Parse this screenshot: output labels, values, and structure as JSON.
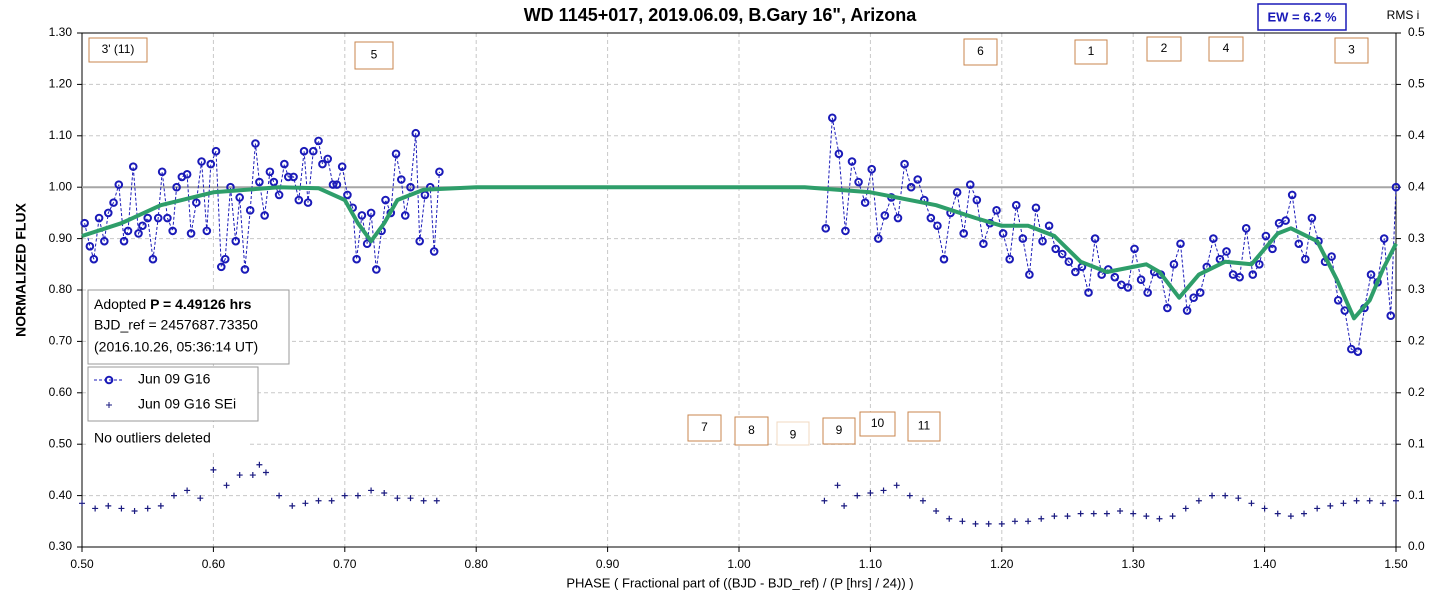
{
  "chart_data": {
    "type": "scatter",
    "title": "WD 1145+017, 2019.06.09, B.Gary 16\", Arizona",
    "x_label": "PHASE ( Fractional part of ((BJD - BJD_ref) / (P [hrs] / 24)) )",
    "y_label": "NORMALIZED FLUX",
    "y2_label": "RMS i",
    "ew_label": "EW =  6.2 %",
    "period_note": {
      "prefix": "Adopted",
      "period": "P = 4.49126 hrs",
      "ref": "BJD_ref = 2457687.73350",
      "date": "(2016.10.26, 05:36:14 UT)"
    },
    "outlier_note": "No outliers deleted",
    "annotations": [
      "3' (11)",
      "5",
      "6",
      "1",
      "2",
      "4",
      "3",
      "7",
      "8",
      "9",
      "9",
      "10",
      "11"
    ],
    "xlim": [
      0.5,
      1.5
    ],
    "xticks": [
      {
        "value": 0.5,
        "label": "0.50"
      },
      {
        "value": 0.6,
        "label": "0.60"
      },
      {
        "value": 0.7,
        "label": "0.70"
      },
      {
        "value": 0.8,
        "label": "0.80"
      },
      {
        "value": 0.9,
        "label": "0.90"
      },
      {
        "value": 1.0,
        "label": "1.00"
      },
      {
        "value": 1.1,
        "label": "1.10"
      },
      {
        "value": 1.2,
        "label": "1.20"
      },
      {
        "value": 1.3,
        "label": "1.30"
      },
      {
        "value": 1.4,
        "label": "1.40"
      },
      {
        "value": 1.5,
        "label": "1.50"
      }
    ],
    "ylim": [
      0.3,
      1.3
    ],
    "yticks": [
      {
        "value": 0.3,
        "label": "0.30"
      },
      {
        "value": 0.4,
        "label": "0.40"
      },
      {
        "value": 0.5,
        "label": "0.50"
      },
      {
        "value": 0.6,
        "label": "0.60"
      },
      {
        "value": 0.7,
        "label": "0.70"
      },
      {
        "value": 0.8,
        "label": "0.80"
      },
      {
        "value": 0.9,
        "label": "0.90"
      },
      {
        "value": 1.0,
        "label": "1.00"
      },
      {
        "value": 1.1,
        "label": "1.10"
      },
      {
        "value": 1.2,
        "label": "1.20"
      },
      {
        "value": 1.3,
        "label": "1.30"
      }
    ],
    "y2lim": [
      0,
      0.5
    ],
    "y2ticks": [
      {
        "value": 0,
        "label": "0.0"
      },
      {
        "value": 0.05,
        "label": "0.1"
      },
      {
        "value": 0.1,
        "label": "0.1"
      },
      {
        "value": 0.15,
        "label": "0.2"
      },
      {
        "value": 0.2,
        "label": "0.2"
      },
      {
        "value": 0.25,
        "label": "0.3"
      },
      {
        "value": 0.3,
        "label": "0.3"
      },
      {
        "value": 0.35,
        "label": "0.4"
      },
      {
        "value": 0.4,
        "label": "0.4"
      },
      {
        "value": 0.45,
        "label": "0.5"
      },
      {
        "value": 0.5,
        "label": "0.5"
      }
    ],
    "grid": true,
    "baseline": {
      "value": 1.0,
      "color": "#a6a6a6"
    },
    "series": [
      {
        "name": "Jun 09 G16",
        "color": "#1a1ab8",
        "marker": "circle",
        "line": "dashed",
        "x": [
          0.502,
          0.506,
          0.509,
          0.513,
          0.517,
          0.52,
          0.524,
          0.528,
          0.532,
          0.535,
          0.539,
          0.543,
          0.546,
          0.55,
          0.554,
          0.558,
          0.561,
          0.565,
          0.569,
          0.572,
          0.576,
          0.58,
          0.583,
          0.587,
          0.591,
          0.595,
          0.598,
          0.602,
          0.606,
          0.609,
          0.613,
          0.617,
          0.62,
          0.624,
          0.628,
          0.632,
          0.635,
          0.639,
          0.643,
          0.646,
          0.65,
          0.654,
          0.657,
          0.661,
          0.665,
          0.669,
          0.672,
          0.676,
          0.68,
          0.683,
          0.687,
          0.691,
          0.694,
          0.698,
          0.702,
          0.706,
          0.709,
          0.713,
          0.717,
          0.72,
          0.724,
          0.728,
          0.731,
          0.735,
          0.739,
          0.743,
          0.746,
          0.75,
          0.754,
          0.757,
          0.761,
          0.765,
          0.768,
          0.772,
          null,
          1.066,
          1.071,
          1.076,
          1.081,
          1.086,
          1.091,
          1.096,
          1.101,
          1.106,
          1.111,
          1.116,
          1.121,
          1.126,
          1.131,
          1.136,
          1.141,
          1.146,
          1.151,
          1.156,
          1.161,
          1.166,
          1.171,
          1.176,
          1.181,
          1.186,
          1.191,
          1.196,
          1.201,
          1.206,
          1.211,
          1.216,
          1.221,
          1.226,
          1.231,
          1.236,
          1.241,
          1.246,
          1.251,
          1.256,
          1.261,
          1.266,
          1.271,
          1.276,
          1.281,
          1.286,
          1.291,
          1.296,
          1.301,
          1.306,
          1.311,
          1.316,
          1.321,
          1.326,
          1.331,
          1.336,
          1.341,
          1.346,
          1.351,
          1.356,
          1.361,
          1.366,
          1.371,
          1.376,
          1.381,
          1.386,
          1.391,
          1.396,
          1.401,
          1.406,
          1.411,
          1.416,
          1.421,
          1.426,
          1.431,
          1.436,
          1.441,
          1.446,
          1.451,
          1.456,
          1.461,
          1.466,
          1.471,
          1.476,
          1.481,
          1.486,
          1.491,
          1.496,
          1.5
        ],
        "values": [
          0.93,
          0.885,
          0.86,
          0.94,
          0.895,
          0.95,
          0.97,
          1.005,
          0.895,
          0.915,
          1.04,
          0.91,
          0.925,
          0.94,
          0.86,
          0.94,
          1.03,
          0.94,
          0.915,
          1.0,
          1.02,
          1.025,
          0.91,
          0.97,
          1.05,
          0.915,
          1.045,
          1.07,
          0.845,
          0.86,
          1.0,
          0.895,
          0.98,
          0.84,
          0.955,
          1.085,
          1.01,
          0.945,
          1.03,
          1.01,
          0.985,
          1.045,
          1.02,
          1.02,
          0.975,
          1.07,
          0.97,
          1.07,
          1.09,
          1.045,
          1.055,
          1.005,
          1.005,
          1.04,
          0.985,
          0.96,
          0.86,
          0.945,
          0.89,
          0.95,
          0.84,
          0.915,
          0.975,
          0.95,
          1.065,
          1.015,
          0.945,
          1.0,
          1.105,
          0.895,
          0.985,
          1.0,
          0.875,
          1.03,
          null,
          0.92,
          1.135,
          1.065,
          0.915,
          1.05,
          1.01,
          0.97,
          1.035,
          0.9,
          0.945,
          0.98,
          0.94,
          1.045,
          1.0,
          1.015,
          0.975,
          0.94,
          0.925,
          0.86,
          0.95,
          0.99,
          0.91,
          1.005,
          0.975,
          0.89,
          0.93,
          0.955,
          0.91,
          0.86,
          0.965,
          0.9,
          0.83,
          0.96,
          0.895,
          0.925,
          0.88,
          0.87,
          0.855,
          0.835,
          0.845,
          0.795,
          0.9,
          0.83,
          0.84,
          0.825,
          0.81,
          0.805,
          0.88,
          0.82,
          0.795,
          0.835,
          0.83,
          0.765,
          0.85,
          0.89,
          0.76,
          0.785,
          0.795,
          0.845,
          0.9,
          0.86,
          0.875,
          0.83,
          0.825,
          0.92,
          0.83,
          0.85,
          0.905,
          0.88,
          0.93,
          0.935,
          0.985,
          0.89,
          0.86,
          0.94,
          0.895,
          0.855,
          0.865,
          0.78,
          0.76,
          0.685,
          0.68,
          0.765,
          0.83,
          0.815,
          0.9,
          0.75,
          1.0
        ]
      },
      {
        "name": "Jun 09 G16 SEi",
        "color": "#1a1a80",
        "marker": "plus",
        "line": "none",
        "axis": "y2",
        "x": [
          0.5,
          0.51,
          0.52,
          0.53,
          0.54,
          0.55,
          0.56,
          0.57,
          0.58,
          0.59,
          0.6,
          0.61,
          0.62,
          0.63,
          0.635,
          0.64,
          0.65,
          0.66,
          0.67,
          0.68,
          0.69,
          0.7,
          0.71,
          0.72,
          0.73,
          0.74,
          0.75,
          0.76,
          0.77,
          null,
          1.065,
          1.075,
          1.08,
          1.09,
          1.1,
          1.11,
          1.12,
          1.13,
          1.14,
          1.15,
          1.16,
          1.17,
          1.18,
          1.19,
          1.2,
          1.21,
          1.22,
          1.23,
          1.24,
          1.25,
          1.26,
          1.27,
          1.28,
          1.29,
          1.3,
          1.31,
          1.32,
          1.33,
          1.34,
          1.35,
          1.36,
          1.37,
          1.38,
          1.39,
          1.4,
          1.41,
          1.42,
          1.43,
          1.44,
          1.45,
          1.46,
          1.47,
          1.48,
          1.49,
          1.5
        ],
        "values": [
          0.0425,
          0.0375,
          0.04,
          0.0375,
          0.035,
          0.0375,
          0.04,
          0.05,
          0.055,
          0.0475,
          0.075,
          0.06,
          0.07,
          0.07,
          0.08,
          0.0725,
          0.05,
          0.04,
          0.0425,
          0.045,
          0.045,
          0.05,
          0.05,
          0.055,
          0.0525,
          0.0475,
          0.0475,
          0.045,
          0.045,
          null,
          0.045,
          0.06,
          0.04,
          0.05,
          0.0525,
          0.055,
          0.06,
          0.05,
          0.045,
          0.035,
          0.0275,
          0.025,
          0.0225,
          0.0225,
          0.0225,
          0.025,
          0.025,
          0.0275,
          0.03,
          0.03,
          0.0325,
          0.0325,
          0.0325,
          0.035,
          0.0325,
          0.03,
          0.0275,
          0.03,
          0.0375,
          0.045,
          0.05,
          0.05,
          0.0475,
          0.0425,
          0.0375,
          0.0325,
          0.03,
          0.0325,
          0.0375,
          0.04,
          0.0425,
          0.045,
          0.045,
          0.0425,
          0.045
        ]
      }
    ],
    "model_curve": {
      "color": "#2e9e6a",
      "x": [
        0.5,
        0.53,
        0.56,
        0.6,
        0.65,
        0.68,
        0.7,
        0.71,
        0.72,
        0.73,
        0.74,
        0.76,
        0.8,
        1.05,
        1.1,
        1.15,
        1.18,
        1.2,
        1.22,
        1.24,
        1.26,
        1.28,
        1.3,
        1.31,
        1.32,
        1.335,
        1.35,
        1.37,
        1.39,
        1.41,
        1.42,
        1.44,
        1.455,
        1.468,
        1.48,
        1.49,
        1.5
      ],
      "values": [
        0.905,
        0.93,
        0.965,
        0.99,
        1.0,
        0.998,
        0.975,
        0.93,
        0.895,
        0.93,
        0.975,
        0.995,
        1.0,
        1.0,
        0.99,
        0.965,
        0.94,
        0.925,
        0.925,
        0.905,
        0.855,
        0.835,
        0.845,
        0.85,
        0.835,
        0.785,
        0.83,
        0.855,
        0.85,
        0.91,
        0.92,
        0.895,
        0.82,
        0.745,
        0.78,
        0.84,
        0.89
      ]
    }
  }
}
